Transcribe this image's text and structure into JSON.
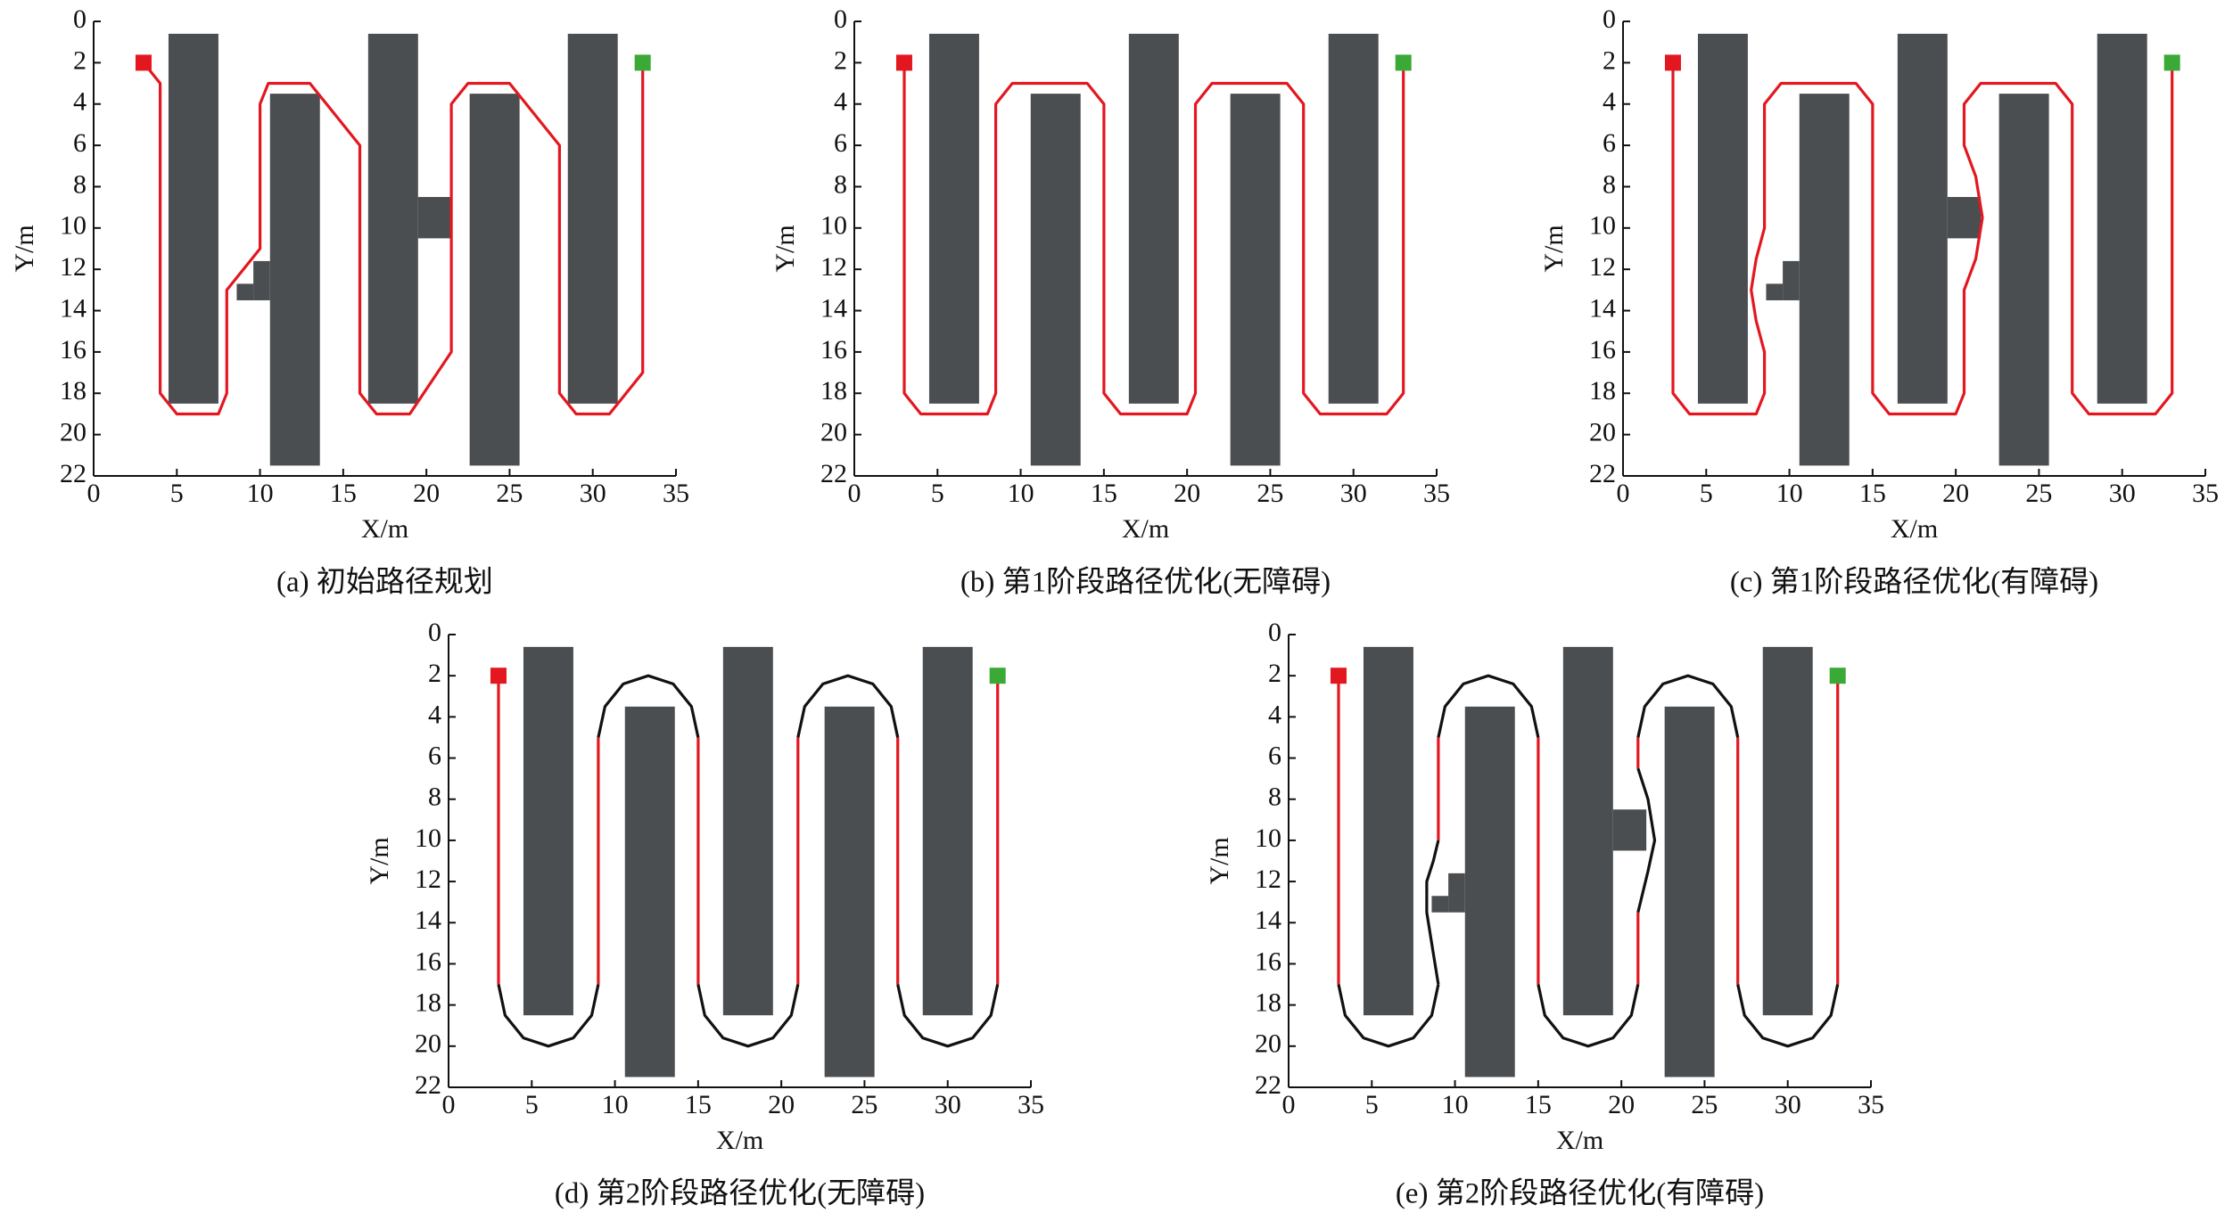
{
  "chart_data": [
    {
      "type": "path",
      "title": "(a) 初始路径规划",
      "xlabel": "X/m",
      "ylabel": "Y/m",
      "xlim": [
        0,
        35
      ],
      "ylim": [
        0,
        22
      ],
      "y_inverted": true,
      "xticks": [
        0,
        5,
        10,
        15,
        20,
        25,
        30,
        35
      ],
      "yticks": [
        0,
        2,
        4,
        6,
        8,
        10,
        12,
        14,
        16,
        18,
        20,
        22
      ],
      "obstacle_color": "#4b4e51",
      "obstacles": [
        {
          "x": [
            4.5,
            7.5
          ],
          "y": [
            0.6,
            18.5
          ]
        },
        {
          "x": [
            10.6,
            13.6
          ],
          "y": [
            3.5,
            21.5
          ]
        },
        {
          "x": [
            9.6,
            10.6
          ],
          "y": [
            11.6,
            13.5
          ]
        },
        {
          "x": [
            8.6,
            9.6
          ],
          "y": [
            12.7,
            13.5
          ]
        },
        {
          "x": [
            16.5,
            19.5
          ],
          "y": [
            0.6,
            18.5
          ]
        },
        {
          "x": [
            19.5,
            21.5
          ],
          "y": [
            8.5,
            10.5
          ]
        },
        {
          "x": [
            22.6,
            25.6
          ],
          "y": [
            3.5,
            21.5
          ]
        },
        {
          "x": [
            28.5,
            31.5
          ],
          "y": [
            0.6,
            18.5
          ]
        }
      ],
      "start": {
        "x": 3,
        "y": 2,
        "color": "#e3171f"
      },
      "goal": {
        "x": 33,
        "y": 2,
        "color": "#3aa935"
      },
      "paths": [
        {
          "color": "#e3171f",
          "x": [
            3,
            4,
            4,
            5,
            7.5,
            8,
            8,
            10,
            10,
            10.5,
            13,
            16,
            16,
            17,
            19,
            21.5,
            21.5,
            22.5,
            25,
            28,
            28,
            29,
            31,
            33,
            33
          ],
          "y": [
            2,
            3,
            18,
            19,
            19,
            18,
            13,
            11,
            4,
            3,
            3,
            6,
            18,
            19,
            19,
            16,
            4,
            3,
            3,
            6,
            18,
            19,
            19,
            17,
            2
          ]
        }
      ]
    },
    {
      "type": "path",
      "title": "(b) 第1阶段路径优化(无障碍)",
      "xlabel": "X/m",
      "ylabel": "Y/m",
      "xlim": [
        0,
        35
      ],
      "ylim": [
        0,
        22
      ],
      "y_inverted": true,
      "xticks": [
        0,
        5,
        10,
        15,
        20,
        25,
        30,
        35
      ],
      "yticks": [
        0,
        2,
        4,
        6,
        8,
        10,
        12,
        14,
        16,
        18,
        20,
        22
      ],
      "obstacle_color": "#4b4e51",
      "obstacles": [
        {
          "x": [
            4.5,
            7.5
          ],
          "y": [
            0.6,
            18.5
          ]
        },
        {
          "x": [
            10.6,
            13.6
          ],
          "y": [
            3.5,
            21.5
          ]
        },
        {
          "x": [
            16.5,
            19.5
          ],
          "y": [
            0.6,
            18.5
          ]
        },
        {
          "x": [
            22.6,
            25.6
          ],
          "y": [
            3.5,
            21.5
          ]
        },
        {
          "x": [
            28.5,
            31.5
          ],
          "y": [
            0.6,
            18.5
          ]
        }
      ],
      "start": {
        "x": 3,
        "y": 2,
        "color": "#e3171f"
      },
      "goal": {
        "x": 33,
        "y": 2,
        "color": "#3aa935"
      },
      "paths": [
        {
          "color": "#e3171f",
          "x": [
            3,
            3,
            4,
            8,
            8.5,
            8.5,
            9.5,
            14,
            15,
            15,
            16,
            20,
            20.5,
            20.5,
            21.5,
            26,
            27,
            27,
            28,
            32,
            33,
            33
          ],
          "y": [
            2,
            18,
            19,
            19,
            18,
            4,
            3,
            3,
            4,
            18,
            19,
            19,
            18,
            4,
            3,
            3,
            4,
            18,
            19,
            19,
            18,
            2
          ]
        }
      ]
    },
    {
      "type": "path",
      "title": "(c) 第1阶段路径优化(有障碍)",
      "xlabel": "X/m",
      "ylabel": "Y/m",
      "xlim": [
        0,
        35
      ],
      "ylim": [
        0,
        22
      ],
      "y_inverted": true,
      "xticks": [
        0,
        5,
        10,
        15,
        20,
        25,
        30,
        35
      ],
      "yticks": [
        0,
        2,
        4,
        6,
        8,
        10,
        12,
        14,
        16,
        18,
        20,
        22
      ],
      "obstacle_color": "#4b4e51",
      "obstacles": [
        {
          "x": [
            4.5,
            7.5
          ],
          "y": [
            0.6,
            18.5
          ]
        },
        {
          "x": [
            10.6,
            13.6
          ],
          "y": [
            3.5,
            21.5
          ]
        },
        {
          "x": [
            9.6,
            10.6
          ],
          "y": [
            11.6,
            13.5
          ]
        },
        {
          "x": [
            8.6,
            9.6
          ],
          "y": [
            12.7,
            13.5
          ]
        },
        {
          "x": [
            16.5,
            19.5
          ],
          "y": [
            0.6,
            18.5
          ]
        },
        {
          "x": [
            19.5,
            21.5
          ],
          "y": [
            8.5,
            10.5
          ]
        },
        {
          "x": [
            22.6,
            25.6
          ],
          "y": [
            3.5,
            21.5
          ]
        },
        {
          "x": [
            28.5,
            31.5
          ],
          "y": [
            0.6,
            18.5
          ]
        }
      ],
      "start": {
        "x": 3,
        "y": 2,
        "color": "#e3171f"
      },
      "goal": {
        "x": 33,
        "y": 2,
        "color": "#3aa935"
      },
      "paths": [
        {
          "color": "#e3171f",
          "x": [
            3,
            3,
            4,
            8,
            8.5,
            8.5,
            8,
            7.7,
            8,
            8.5,
            8.5,
            9.5,
            14,
            15,
            15,
            16,
            20,
            20.5,
            20.5,
            21.2,
            21.6,
            21.2,
            20.5,
            20.5,
            21.5,
            26,
            27,
            27,
            28,
            32,
            33,
            33
          ],
          "y": [
            2,
            18,
            19,
            19,
            18,
            16,
            14.5,
            13,
            11.5,
            10,
            4,
            3,
            3,
            4,
            18,
            19,
            19,
            18,
            13,
            11.5,
            9.5,
            7.5,
            6,
            4,
            3,
            3,
            4,
            18,
            19,
            19,
            18,
            2
          ]
        }
      ]
    },
    {
      "type": "path",
      "title": "(d) 第2阶段路径优化(无障碍)",
      "xlabel": "X/m",
      "ylabel": "Y/m",
      "xlim": [
        0,
        35
      ],
      "ylim": [
        0,
        22
      ],
      "y_inverted": true,
      "xticks": [
        0,
        5,
        10,
        15,
        20,
        25,
        30,
        35
      ],
      "yticks": [
        0,
        2,
        4,
        6,
        8,
        10,
        12,
        14,
        16,
        18,
        20,
        22
      ],
      "obstacle_color": "#4b4e51",
      "obstacles": [
        {
          "x": [
            4.5,
            7.5
          ],
          "y": [
            0.6,
            18.5
          ]
        },
        {
          "x": [
            10.6,
            13.6
          ],
          "y": [
            3.5,
            21.5
          ]
        },
        {
          "x": [
            16.5,
            19.5
          ],
          "y": [
            0.6,
            18.5
          ]
        },
        {
          "x": [
            22.6,
            25.6
          ],
          "y": [
            3.5,
            21.5
          ]
        },
        {
          "x": [
            28.5,
            31.5
          ],
          "y": [
            0.6,
            18.5
          ]
        }
      ],
      "start": {
        "x": 3,
        "y": 2,
        "color": "#e3171f"
      },
      "goal": {
        "x": 33,
        "y": 2,
        "color": "#3aa935"
      },
      "paths": [
        {
          "color": "#e3171f",
          "x": [
            3,
            3,
            null,
            9,
            9,
            null,
            15,
            15,
            null,
            21,
            21,
            null,
            27,
            27,
            null,
            33,
            33
          ],
          "y": [
            2,
            17,
            null,
            17,
            5,
            null,
            5,
            17,
            null,
            17,
            5,
            null,
            5,
            17,
            null,
            17,
            2
          ]
        },
        {
          "color": "#111111",
          "x": [
            3,
            3.4,
            4.5,
            6,
            7.5,
            8.6,
            9,
            null,
            9,
            9.4,
            10.5,
            12,
            13.5,
            14.6,
            15,
            null,
            15,
            15.4,
            16.5,
            18,
            19.5,
            20.6,
            21,
            null,
            21,
            21.4,
            22.5,
            24,
            25.5,
            26.6,
            27,
            null,
            27,
            27.4,
            28.5,
            30,
            31.5,
            32.6,
            33
          ],
          "y": [
            17,
            18.5,
            19.6,
            20,
            19.6,
            18.5,
            17,
            null,
            5,
            3.5,
            2.4,
            2,
            2.4,
            3.5,
            5,
            null,
            17,
            18.5,
            19.6,
            20,
            19.6,
            18.5,
            17,
            null,
            5,
            3.5,
            2.4,
            2,
            2.4,
            3.5,
            5,
            null,
            17,
            18.5,
            19.6,
            20,
            19.6,
            18.5,
            17
          ]
        }
      ]
    },
    {
      "type": "path",
      "title": "(e) 第2阶段路径优化(有障碍)",
      "xlabel": "X/m",
      "ylabel": "Y/m",
      "xlim": [
        0,
        35
      ],
      "ylim": [
        0,
        22
      ],
      "y_inverted": true,
      "xticks": [
        0,
        5,
        10,
        15,
        20,
        25,
        30,
        35
      ],
      "yticks": [
        0,
        2,
        4,
        6,
        8,
        10,
        12,
        14,
        16,
        18,
        20,
        22
      ],
      "obstacle_color": "#4b4e51",
      "obstacles": [
        {
          "x": [
            4.5,
            7.5
          ],
          "y": [
            0.6,
            18.5
          ]
        },
        {
          "x": [
            10.6,
            13.6
          ],
          "y": [
            3.5,
            21.5
          ]
        },
        {
          "x": [
            9.6,
            10.6
          ],
          "y": [
            11.6,
            13.5
          ]
        },
        {
          "x": [
            8.6,
            9.6
          ],
          "y": [
            12.7,
            13.5
          ]
        },
        {
          "x": [
            16.5,
            19.5
          ],
          "y": [
            0.6,
            18.5
          ]
        },
        {
          "x": [
            19.5,
            21.5
          ],
          "y": [
            8.5,
            10.5
          ]
        },
        {
          "x": [
            22.6,
            25.6
          ],
          "y": [
            3.5,
            21.5
          ]
        },
        {
          "x": [
            28.5,
            31.5
          ],
          "y": [
            0.6,
            18.5
          ]
        }
      ],
      "start": {
        "x": 3,
        "y": 2,
        "color": "#e3171f"
      },
      "goal": {
        "x": 33,
        "y": 2,
        "color": "#3aa935"
      },
      "paths": [
        {
          "color": "#e3171f",
          "x": [
            3,
            3,
            null,
            9,
            9,
            null,
            15,
            15,
            null,
            21,
            21,
            null,
            21,
            21,
            null,
            27,
            27,
            null,
            33,
            33
          ],
          "y": [
            2,
            17,
            null,
            10,
            5,
            null,
            5,
            17,
            null,
            17,
            13.5,
            null,
            6.5,
            5,
            null,
            5,
            17,
            null,
            17,
            2
          ]
        },
        {
          "color": "#111111",
          "x": [
            3,
            3.4,
            4.5,
            6,
            7.5,
            8.6,
            9,
            null,
            9,
            8.7,
            8.3,
            8.3,
            8.7,
            9,
            null,
            9,
            9.4,
            10.5,
            12,
            13.5,
            14.6,
            15,
            null,
            15,
            15.4,
            16.5,
            18,
            19.5,
            20.6,
            21,
            null,
            21,
            21.6,
            22,
            21.6,
            21,
            null,
            21,
            21.4,
            22.5,
            24,
            25.5,
            26.6,
            27,
            null,
            27,
            27.4,
            28.5,
            30,
            31.5,
            32.6,
            33
          ],
          "y": [
            17,
            18.5,
            19.6,
            20,
            19.6,
            18.5,
            17,
            null,
            17,
            15.5,
            13.5,
            12,
            11,
            10,
            null,
            5,
            3.5,
            2.4,
            2,
            2.4,
            3.5,
            5,
            null,
            17,
            18.5,
            19.6,
            20,
            19.6,
            18.5,
            17,
            null,
            13.5,
            11.5,
            10,
            8,
            6.5,
            null,
            5,
            3.5,
            2.4,
            2,
            2.4,
            3.5,
            5,
            null,
            17,
            18.5,
            19.6,
            20,
            19.6,
            18.5,
            17
          ]
        }
      ]
    }
  ]
}
